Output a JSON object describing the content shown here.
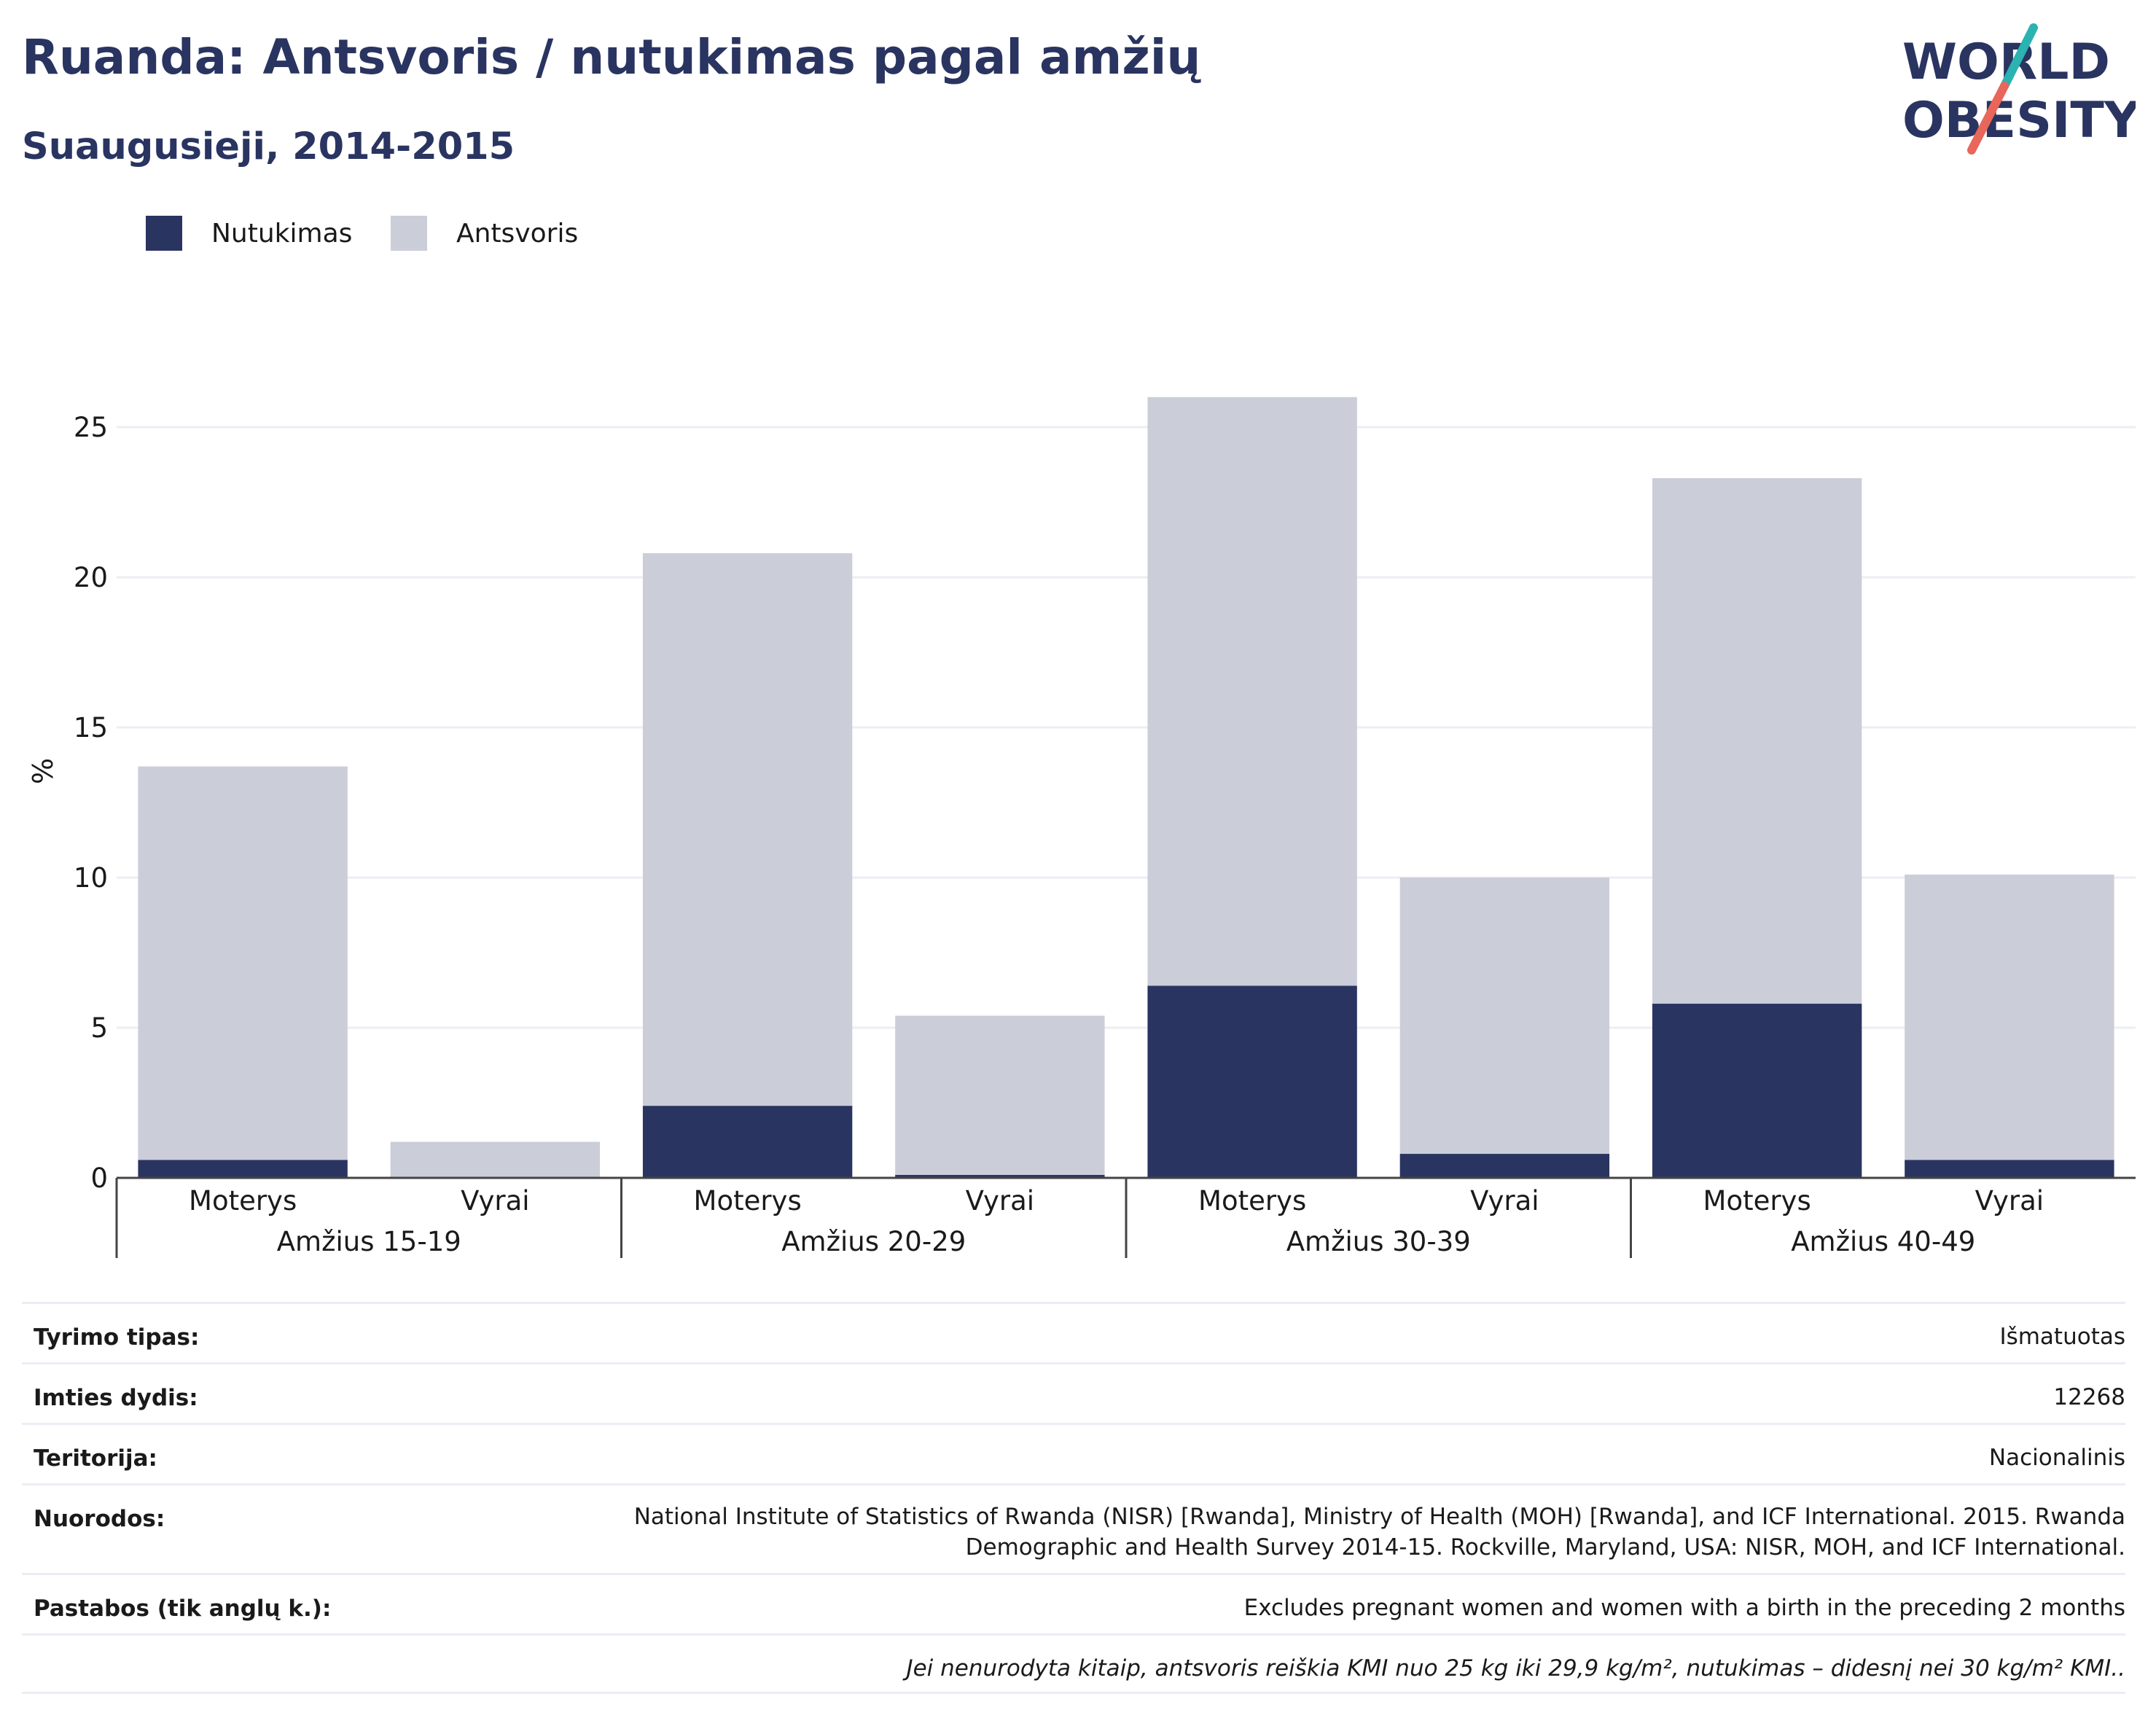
{
  "header": {
    "title": "Ruanda: Antsvoris / nutukimas pagal amžių",
    "subtitle": "Suaugusieji, 2014-2015"
  },
  "logo": {
    "line1": "WORLD",
    "line2": "OBESITY",
    "colors": {
      "text": "#2a3461",
      "slash_teal": "#2ab3b1",
      "slash_coral": "#e8665a"
    }
  },
  "legend": [
    {
      "label": "Nutukimas",
      "color": "#2a3461"
    },
    {
      "label": "Antsvoris",
      "color": "#cbcdd9"
    }
  ],
  "chart_data": {
    "type": "bar",
    "stacked": true,
    "ylabel": "%",
    "ylim": [
      0,
      27.5
    ],
    "yticks": [
      0,
      5,
      10,
      15,
      20,
      25
    ],
    "grid": true,
    "legend_position": "top-left",
    "groups": [
      "Amžius 15-19",
      "Amžius 20-29",
      "Amžius 30-39",
      "Amžius 40-49"
    ],
    "categories": [
      "Moterys",
      "Vyrai",
      "Moterys",
      "Vyrai",
      "Moterys",
      "Vyrai",
      "Moterys",
      "Vyrai"
    ],
    "series": [
      {
        "name": "Nutukimas",
        "color": "#2a3461",
        "values": [
          0.6,
          0.0,
          2.4,
          0.1,
          6.4,
          0.8,
          5.8,
          0.6
        ]
      },
      {
        "name": "Antsvoris",
        "color": "#cbcdd9",
        "values": [
          13.1,
          1.2,
          18.4,
          5.3,
          19.6,
          9.2,
          17.5,
          9.5
        ]
      }
    ]
  },
  "info": [
    {
      "label": "Tyrimo tipas:",
      "value": "Išmatuotas"
    },
    {
      "label": "Imties dydis:",
      "value": "12268"
    },
    {
      "label": "Teritorija:",
      "value": "Nacionalinis"
    },
    {
      "label": "Nuorodos:",
      "value": "National Institute of Statistics of Rwanda (NISR) [Rwanda], Ministry of Health (MOH) [Rwanda], and ICF International. 2015. Rwanda Demographic and Health Survey 2014-15. Rockville, Maryland, USA: NISR, MOH, and ICF International."
    },
    {
      "label": "Pastabos (tik anglų k.):",
      "value": "Excludes pregnant women and women with a birth in the preceding 2 months"
    }
  ],
  "footnote": "Jei nenurodyta kitaip, antsvoris reiškia KMI nuo 25 kg iki 29,9 kg/m², nutukimas – didesnį nei 30 kg/m² KMI.."
}
